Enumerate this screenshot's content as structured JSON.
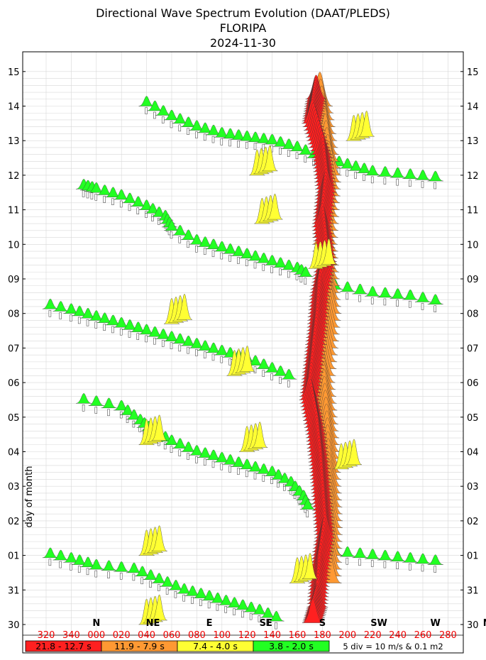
{
  "header": {
    "title": "Directional Wave Spectrum Evolution (DAAT/PLEDS)",
    "station": "FLORIPA",
    "date": "2024-11-30"
  },
  "chart_data": {
    "type": "scatter",
    "ylabel": "day of month",
    "y_ticks": [
      "30",
      "31",
      "01",
      "02",
      "03",
      "04",
      "05",
      "06",
      "07",
      "08",
      "09",
      "10",
      "11",
      "12",
      "13",
      "14",
      "15"
    ],
    "direction_ticks": [
      "320",
      "340",
      "000",
      "020",
      "040",
      "060",
      "080",
      "100",
      "120",
      "140",
      "160",
      "180",
      "200",
      "220",
      "240",
      "260",
      "280"
    ],
    "compass_labels": [
      {
        "label": "NW",
        "dir": 315
      },
      {
        "label": "N",
        "dir": 0
      },
      {
        "label": "NE",
        "dir": 45
      },
      {
        "label": "E",
        "dir": 90
      },
      {
        "label": "SE",
        "dir": 135
      },
      {
        "label": "S",
        "dir": 180
      },
      {
        "label": "SW",
        "dir": 225
      },
      {
        "label": "W",
        "dir": 270
      }
    ],
    "x_range_deg": [
      310,
      290
    ],
    "y_range_day": [
      0,
      16.5
    ],
    "period_bands": [
      {
        "label": "21.8 - 12.7 s",
        "color": "#ff2020"
      },
      {
        "label": "11.9 - 7.9 s",
        "color": "#ff9933"
      },
      {
        "label": "7.4 - 4.0 s",
        "color": "#ffff33"
      },
      {
        "label": "3.8 - 2.0 s",
        "color": "#22ff22"
      }
    ],
    "scale_note": "5 div = 10 m/s & 0.1 m2",
    "grid": true,
    "swell_tracks": [
      {
        "band": 3,
        "points": [
          [
            350,
            12.6
          ],
          [
            0,
            12.5
          ],
          [
            20,
            12.3
          ],
          [
            40,
            12.0
          ],
          [
            55,
            11.7
          ],
          [
            60,
            11.4
          ],
          [
            80,
            11.0
          ],
          [
            100,
            10.8
          ],
          [
            120,
            10.6
          ],
          [
            140,
            10.4
          ],
          [
            160,
            10.2
          ],
          [
            170,
            10.0
          ]
        ]
      },
      {
        "band": 3,
        "points": [
          [
            315,
            9.2
          ],
          [
            340,
            9.0
          ],
          [
            0,
            8.8
          ],
          [
            20,
            8.6
          ],
          [
            40,
            8.4
          ],
          [
            60,
            8.2
          ],
          [
            80,
            8.0
          ],
          [
            100,
            7.8
          ],
          [
            120,
            7.6
          ],
          [
            140,
            7.3
          ],
          [
            160,
            7.0
          ]
        ]
      },
      {
        "band": 3,
        "points": [
          [
            350,
            6.4
          ],
          [
            20,
            6.2
          ],
          [
            35,
            5.8
          ],
          [
            45,
            5.5
          ],
          [
            60,
            5.2
          ],
          [
            80,
            4.9
          ],
          [
            100,
            4.7
          ],
          [
            120,
            4.5
          ],
          [
            140,
            4.3
          ],
          [
            155,
            4.0
          ],
          [
            165,
            3.6
          ],
          [
            170,
            3.2
          ]
        ]
      },
      {
        "band": 3,
        "points": [
          [
            315,
            2.0
          ],
          [
            340,
            1.8
          ],
          [
            0,
            1.6
          ],
          [
            30,
            1.5
          ],
          [
            50,
            1.2
          ],
          [
            70,
            0.9
          ],
          [
            90,
            0.7
          ],
          [
            110,
            0.5
          ],
          [
            130,
            0.3
          ],
          [
            150,
            0.0
          ]
        ]
      },
      {
        "band": 3,
        "points": [
          [
            40,
            15.0
          ],
          [
            60,
            14.6
          ],
          [
            80,
            14.3
          ],
          [
            100,
            14.1
          ],
          [
            120,
            14.0
          ],
          [
            140,
            13.9
          ],
          [
            160,
            13.7
          ],
          [
            180,
            13.4
          ],
          [
            200,
            13.2
          ],
          [
            220,
            13.0
          ],
          [
            250,
            12.9
          ],
          [
            280,
            12.8
          ]
        ]
      },
      {
        "band": 3,
        "points": [
          [
            190,
            9.7
          ],
          [
            220,
            9.5
          ],
          [
            250,
            9.4
          ],
          [
            280,
            9.2
          ]
        ]
      },
      {
        "band": 3,
        "points": [
          [
            190,
            2.0
          ],
          [
            220,
            1.9
          ],
          [
            250,
            1.8
          ],
          [
            280,
            1.7
          ]
        ]
      }
    ],
    "red_ridge": [
      [
        175,
        15.2
      ],
      [
        172,
        14.5
      ],
      [
        180,
        13.5
      ],
      [
        183,
        12.5
      ],
      [
        180,
        11.5
      ],
      [
        183,
        10.5
      ],
      [
        178,
        9.5
      ],
      [
        176,
        8.5
      ],
      [
        173,
        7.5
      ],
      [
        170,
        6.5
      ],
      [
        175,
        5.5
      ],
      [
        178,
        4.5
      ],
      [
        180,
        3.5
      ],
      [
        182,
        2.5
      ],
      [
        178,
        1.5
      ],
      [
        176,
        0.5
      ],
      [
        172,
        0.0
      ]
    ],
    "orange_ridge": [
      [
        178,
        15.0
      ],
      [
        185,
        13.0
      ],
      [
        182,
        11.0
      ],
      [
        185,
        9.0
      ],
      [
        180,
        7.0
      ],
      [
        184,
        5.0
      ],
      [
        186,
        3.0
      ],
      [
        185,
        1.0
      ]
    ],
    "yellow_windsea": [
      [
        128,
        13.0
      ],
      [
        132,
        11.6
      ],
      [
        175,
        10.3
      ],
      [
        60,
        8.7
      ],
      [
        40,
        5.2
      ],
      [
        40,
        2.0
      ],
      [
        40,
        0.0
      ],
      [
        110,
        7.2
      ],
      [
        120,
        5.0
      ],
      [
        160,
        1.2
      ],
      [
        195,
        4.5
      ],
      [
        205,
        14.0
      ]
    ]
  }
}
